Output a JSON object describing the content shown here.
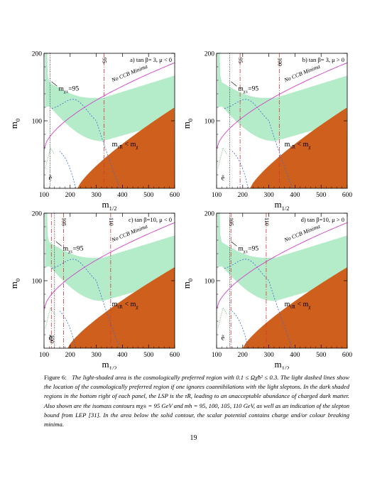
{
  "panels": [
    {
      "id": "a",
      "label": "a) tan β= 3,  μ < 0",
      "ccb_label": "No CCB Minima",
      "chargino_label": "m",
      "chargino_sub": "χ±",
      "chargino_value": "=95",
      "stau_label_left": "m",
      "stau_label_left_sub": "τ̃R",
      "stau_label_lt": "< m",
      "stau_label_right_sub": "χ",
      "selectron_label": "ẽ",
      "higgs_labels": [
        "95"
      ],
      "higgs_lines_x": [
        330
      ],
      "chargino_x": 123,
      "cosmo_band": {
        "lower_start": 98,
        "upper_start": 152
      },
      "stau_edge_start_x": 228
    },
    {
      "id": "b",
      "label": "b) tan β= 3,  μ > 0",
      "ccb_label": "No CCB Minima",
      "chargino_label": "m",
      "chargino_sub": "χ±",
      "chargino_value": "=95",
      "stau_label_left": "m",
      "stau_label_left_sub": "τ̃R",
      "stau_label_lt": "< m",
      "stau_label_right_sub": "χ",
      "selectron_label": "ẽ",
      "higgs_labels": [
        "95",
        "100"
      ],
      "higgs_lines_x": [
        190,
        340
      ],
      "chargino_x": 150,
      "cosmo_band": {
        "lower_start": 98,
        "upper_start": 152
      },
      "stau_edge_start_x": 228
    },
    {
      "id": "c",
      "label": "c) tan β=10,  μ < 0",
      "ccb_label": "No CCB Minima",
      "chargino_label": "m",
      "chargino_sub": "χ±",
      "chargino_value": "=95",
      "stau_label_left": "m",
      "stau_label_left_sub": "τ̃R",
      "stau_label_lt": "< m",
      "stau_label_right_sub": "χ",
      "selectron_label": "ẽ",
      "higgs_labels": [
        "105",
        "110",
        "100"
      ],
      "higgs_lines_x": [
        175,
        355,
        128
      ],
      "chargino_x": 140,
      "cosmo_band": {
        "lower_start": 98,
        "upper_start": 152
      },
      "stau_edge_start_x": 190
    },
    {
      "id": "d",
      "label": "d) tan β=10, μ > 0",
      "ccb_label": "No CCB Minima",
      "chargino_label": "m",
      "chargino_sub": "χ±",
      "chargino_value": "=95",
      "stau_label_left": "m",
      "stau_label_left_sub": "τ̃R",
      "stau_label_lt": "< m",
      "stau_label_right_sub": "χ",
      "selectron_label": "ẽ",
      "higgs_labels": [
        "105",
        "110"
      ],
      "higgs_lines_x": [
        155,
        290
      ],
      "chargino_x": 150,
      "cosmo_band": {
        "lower_start": 98,
        "upper_start": 152
      },
      "stau_edge_start_x": 200
    }
  ],
  "axes": {
    "x_ticks": [
      "100",
      "200",
      "300",
      "400",
      "500",
      "600"
    ],
    "x_tick_values": [
      100,
      200,
      300,
      400,
      500,
      600
    ],
    "x_range": [
      100,
      600
    ],
    "y_ticks": [
      "100",
      "200"
    ],
    "y_tick_values": [
      100,
      200
    ],
    "y_range": [
      0,
      200
    ],
    "x_label": "m",
    "x_label_sub": "1/2",
    "y_label": "m",
    "y_label_sub": "0"
  },
  "colors": {
    "light_region": "#b4ecc9",
    "dark_region": "#cf5f1c",
    "ccb": "#d040c8",
    "higgs": "#d03838",
    "dashed": "#3a6ad0"
  },
  "caption": {
    "lead": "Figure 6:",
    "body": "The light-shaded area is the cosmologically preferred region with 0.1 ≤ Ωχ̃h² ≤ 0.3. The light dashed lines show the location of the cosmologically preferred region if one ignores coannihilations with the light sleptons. In the dark shaded regions in the bottom right of each panel, the LSP is the τ̃R, leading to an unacceptable abundance of charged dark matter. Also shown are the isomass contours mχ± = 95 GeV and mh = 95, 100, 105, 110 GeV, as well as an indication of the slepton bound from LEP [31]. In the area below the solid contour, the scalar potential contains charge and/or colour breaking minima."
  },
  "page_number": "19"
}
